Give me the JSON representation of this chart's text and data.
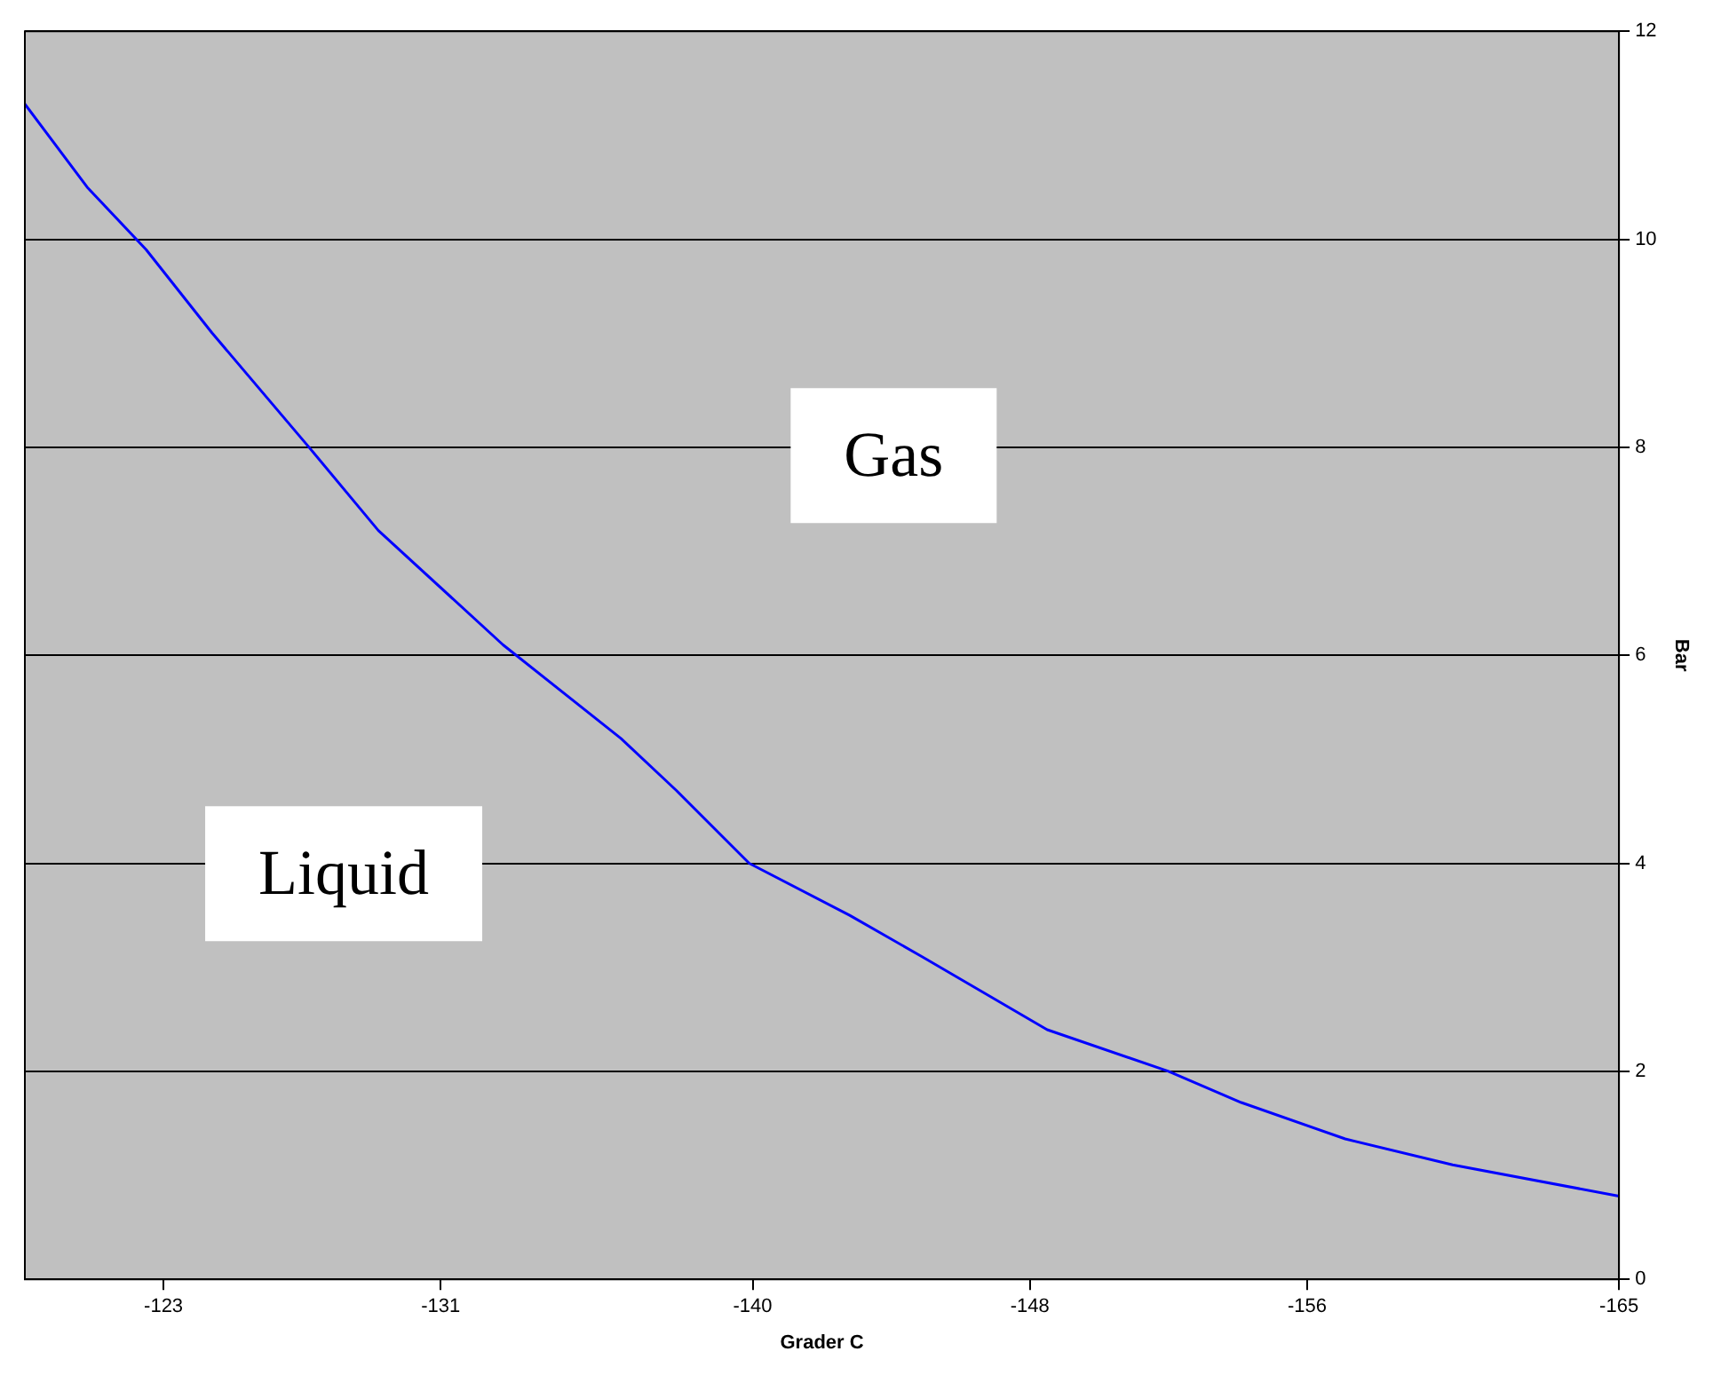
{
  "chart_data": {
    "type": "line",
    "xlabel": "Grader C",
    "ylabel": "Bar",
    "annotations": [
      "Gas",
      "Liquid"
    ],
    "x": [
      -119,
      -120.8,
      -122.5,
      -124.4,
      -127.2,
      -129.2,
      -132.8,
      -136.2,
      -137.8,
      -139.9,
      -142.8,
      -144.9,
      -148.5,
      -152.0,
      -154.1,
      -157.1,
      -160.2,
      -165
    ],
    "series": [
      {
        "color": "#0000ff",
        "values": [
          11.3,
          10.5,
          9.9,
          9.1,
          8.0,
          7.2,
          6.1,
          5.2,
          4.7,
          4.0,
          3.5,
          3.1,
          2.4,
          2.0,
          1.7,
          1.35,
          1.1,
          0.8
        ]
      }
    ],
    "xlim": [
      -119,
      -165
    ],
    "xticks": [
      -123,
      -131,
      -140,
      -148,
      -156,
      -165
    ],
    "ylim": [
      0,
      12
    ],
    "yticks": [
      0,
      2,
      4,
      6,
      8,
      10,
      12
    ],
    "grid": "y",
    "legend": false,
    "marker": "none",
    "line_style": "solid"
  }
}
